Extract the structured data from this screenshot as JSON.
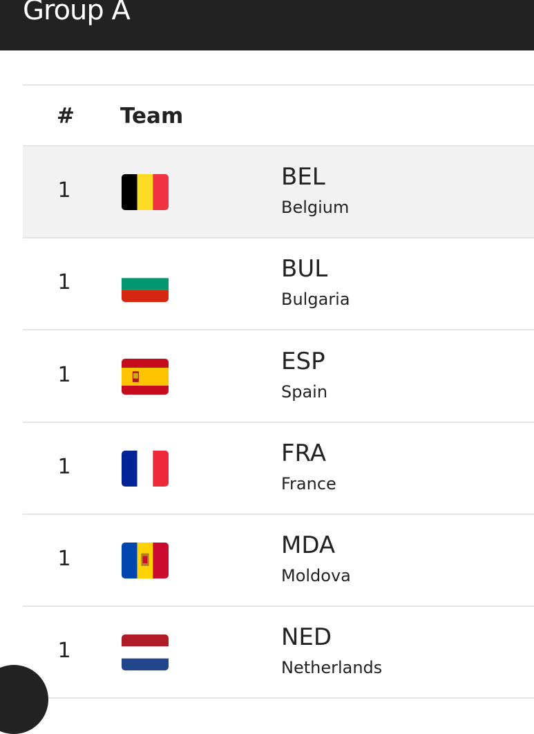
{
  "header": {
    "title": "Group A"
  },
  "table": {
    "columns": [
      "#",
      "Team"
    ],
    "rows": [
      {
        "rank": 1,
        "code": "BEL",
        "name": "Belgium"
      },
      {
        "rank": 1,
        "code": "BUL",
        "name": "Bulgaria"
      },
      {
        "rank": 1,
        "code": "ESP",
        "name": "Spain"
      },
      {
        "rank": 1,
        "code": "FRA",
        "name": "France"
      },
      {
        "rank": 1,
        "code": "MDA",
        "name": "Moldova"
      },
      {
        "rank": 1,
        "code": "NED",
        "name": "Netherlands"
      }
    ]
  }
}
